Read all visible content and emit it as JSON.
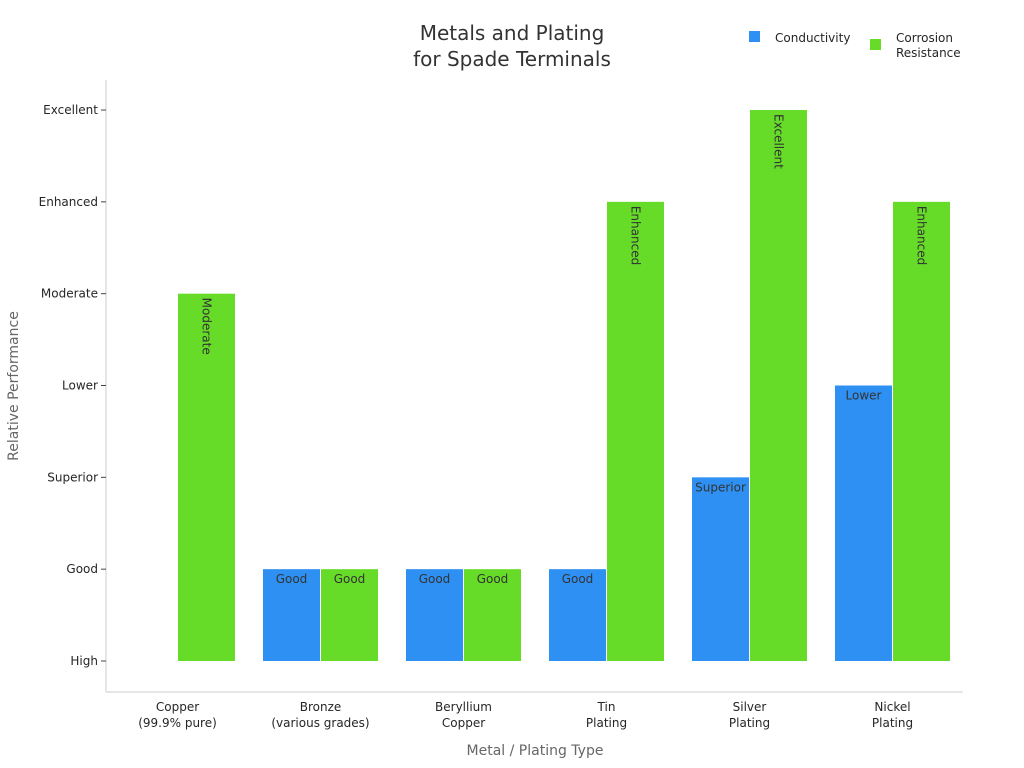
{
  "chart_data": {
    "type": "bar",
    "title": [
      "Metals and Plating",
      "for Spade Terminals"
    ],
    "xlabel": "Metal / Plating Type",
    "ylabel": "Relative Performance",
    "y_levels": [
      "High",
      "Good",
      "Superior",
      "Lower",
      "Moderate",
      "Enhanced",
      "Excellent"
    ],
    "categories": [
      [
        "Copper",
        "(99.9% pure)"
      ],
      [
        "Bronze",
        "(various grades)"
      ],
      [
        "Beryllium",
        "Copper"
      ],
      [
        "Tin",
        "Plating"
      ],
      [
        "Silver",
        "Plating"
      ],
      [
        "Nickel",
        "Plating"
      ]
    ],
    "series": [
      {
        "name": "Conductivity",
        "color": "#2e90f2",
        "values": [
          "High",
          "Good",
          "Good",
          "Good",
          "Superior",
          "Lower"
        ]
      },
      {
        "name": [
          "Corrosion",
          "Resistance"
        ],
        "color": "#66db28",
        "values": [
          "Moderate",
          "Good",
          "Good",
          "Enhanced",
          "Excellent",
          "Enhanced"
        ]
      }
    ],
    "legend_position": "top-right",
    "grid": false
  }
}
